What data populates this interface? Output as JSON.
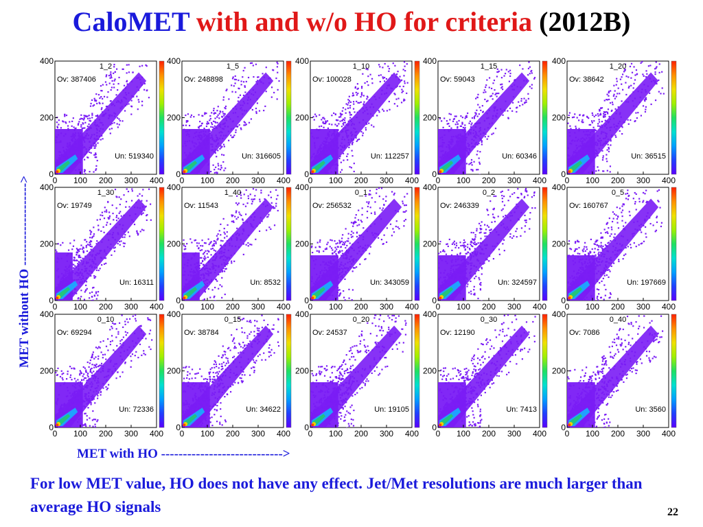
{
  "title": {
    "part1": "CaloMET",
    "part2": "with and w/o HO for criteria",
    "part3": "(2012B)"
  },
  "axes": {
    "ylabel": "MET without HO  ------------------->",
    "xlabel": "MET with HO  ---------------------------->"
  },
  "caption": "For low MET value, HO does not have any effect. Jet/Met resolutions are much larger than average HO signals",
  "page_number": "22",
  "colors": {
    "title_blue": "#1a1adb",
    "title_red": "#e01818",
    "caption_blue": "#1a1adb",
    "plot_fill": "#7a1cf5",
    "plot_hot": "#22c870"
  },
  "chart_data": {
    "type": "heatmap",
    "xlim": [
      0,
      400
    ],
    "ylim": [
      0,
      400
    ],
    "xticks": [
      "0",
      "100",
      "200",
      "300",
      "400"
    ],
    "yticks": [
      "0",
      "200",
      "400"
    ],
    "colorbar": "rainbow (violet to red)",
    "panels": [
      {
        "name": "1_2",
        "overflow_label": "Ov: 387406",
        "underflow_label": "Un: 519340"
      },
      {
        "name": "1_5",
        "overflow_label": "Ov: 248898",
        "underflow_label": "Un: 316605"
      },
      {
        "name": "1_10",
        "overflow_label": "Ov: 100028",
        "underflow_label": "Un: 112257"
      },
      {
        "name": "1_15",
        "overflow_label": "Ov: 59043",
        "underflow_label": "Un: 60346"
      },
      {
        "name": "1_20",
        "overflow_label": "Ov: 38642",
        "underflow_label": "Un: 36515"
      },
      {
        "name": "1_30",
        "overflow_label": "Ov: 19749",
        "underflow_label": "Un: 16311"
      },
      {
        "name": "1_40",
        "overflow_label": "Ov: 11543",
        "underflow_label": "Un: 8532"
      },
      {
        "name": "0_1",
        "overflow_label": "Ov: 256532",
        "underflow_label": "Un: 343059"
      },
      {
        "name": "0_2",
        "overflow_label": "Ov: 246339",
        "underflow_label": "Un: 324597"
      },
      {
        "name": "0_5",
        "overflow_label": "Ov: 160767",
        "underflow_label": "Un: 197669"
      },
      {
        "name": "0_10",
        "overflow_label": "Ov: 69294",
        "underflow_label": "Un: 72336"
      },
      {
        "name": "0_15",
        "overflow_label": "Ov: 38784",
        "underflow_label": "Un: 34622"
      },
      {
        "name": "0_20",
        "overflow_label": "Ov: 24537",
        "underflow_label": "Un: 19105"
      },
      {
        "name": "0_30",
        "overflow_label": "Ov: 12190",
        "underflow_label": "Un: 7413"
      },
      {
        "name": "0_40",
        "overflow_label": "Ov: 7086",
        "underflow_label": "Un: 3560"
      }
    ]
  }
}
